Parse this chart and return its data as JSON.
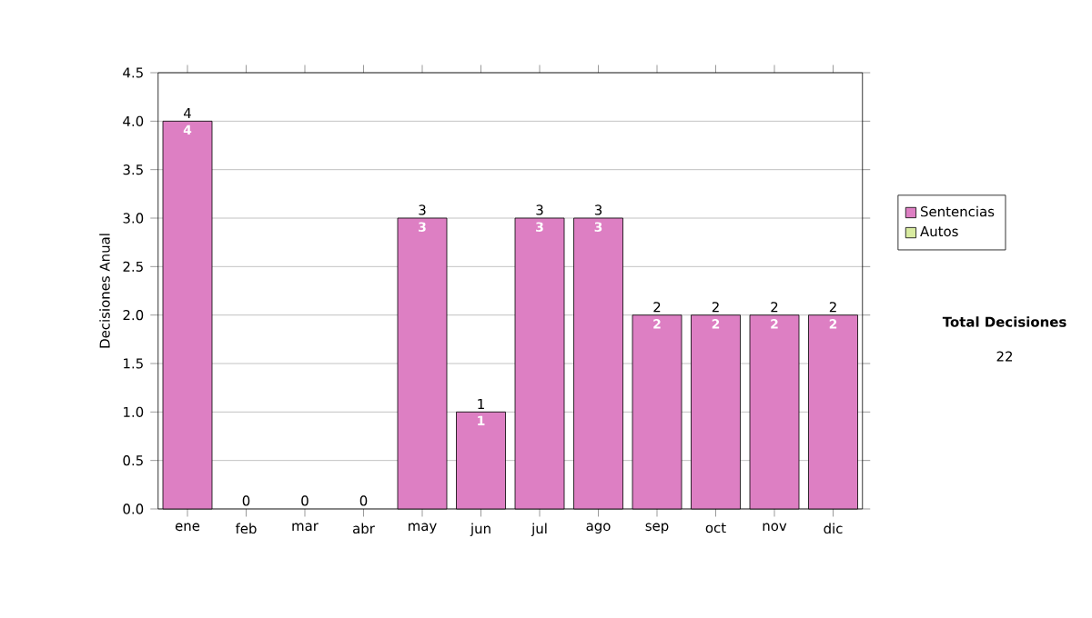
{
  "chart_data": {
    "type": "bar",
    "stacked": true,
    "ylabel": "Decisiones Anual",
    "categories": [
      "ene",
      "feb",
      "mar",
      "abr",
      "may",
      "jun",
      "jul",
      "ago",
      "sep",
      "oct",
      "nov",
      "dic"
    ],
    "series": [
      {
        "name": "Sentencias",
        "color": "#dd7fc3",
        "values": [
          4,
          0,
          0,
          0,
          3,
          1,
          3,
          3,
          2,
          2,
          2,
          2
        ],
        "value_labels": [
          "4",
          null,
          null,
          null,
          "3",
          "1",
          "3",
          "3",
          "2",
          "2",
          "2",
          "2"
        ]
      },
      {
        "name": "Autos",
        "color": "#d8eba0",
        "values": [
          0,
          0,
          0,
          0,
          0,
          0,
          0,
          0,
          0,
          0,
          0,
          0
        ]
      }
    ],
    "totals": [
      "4",
      "0",
      "0",
      "0",
      "3",
      "1",
      "3",
      "3",
      "2",
      "2",
      "2",
      "2"
    ],
    "ylim": [
      0,
      4.5
    ],
    "yticks": [
      {
        "value": 0,
        "label": "0.0"
      },
      {
        "value": 0.5,
        "label": "0.5"
      },
      {
        "value": 1,
        "label": "1.0"
      },
      {
        "value": 1.5,
        "label": "1.5"
      },
      {
        "value": 2,
        "label": "2.0"
      },
      {
        "value": 2.5,
        "label": "2.5"
      },
      {
        "value": 3,
        "label": "3.0"
      },
      {
        "value": 3.5,
        "label": "3.5"
      },
      {
        "value": 4,
        "label": "4.0"
      },
      {
        "value": 4.5,
        "label": "4.5"
      }
    ],
    "grid": "y",
    "legend": "right",
    "annotations": [
      "Total Decisiones",
      "22"
    ]
  }
}
